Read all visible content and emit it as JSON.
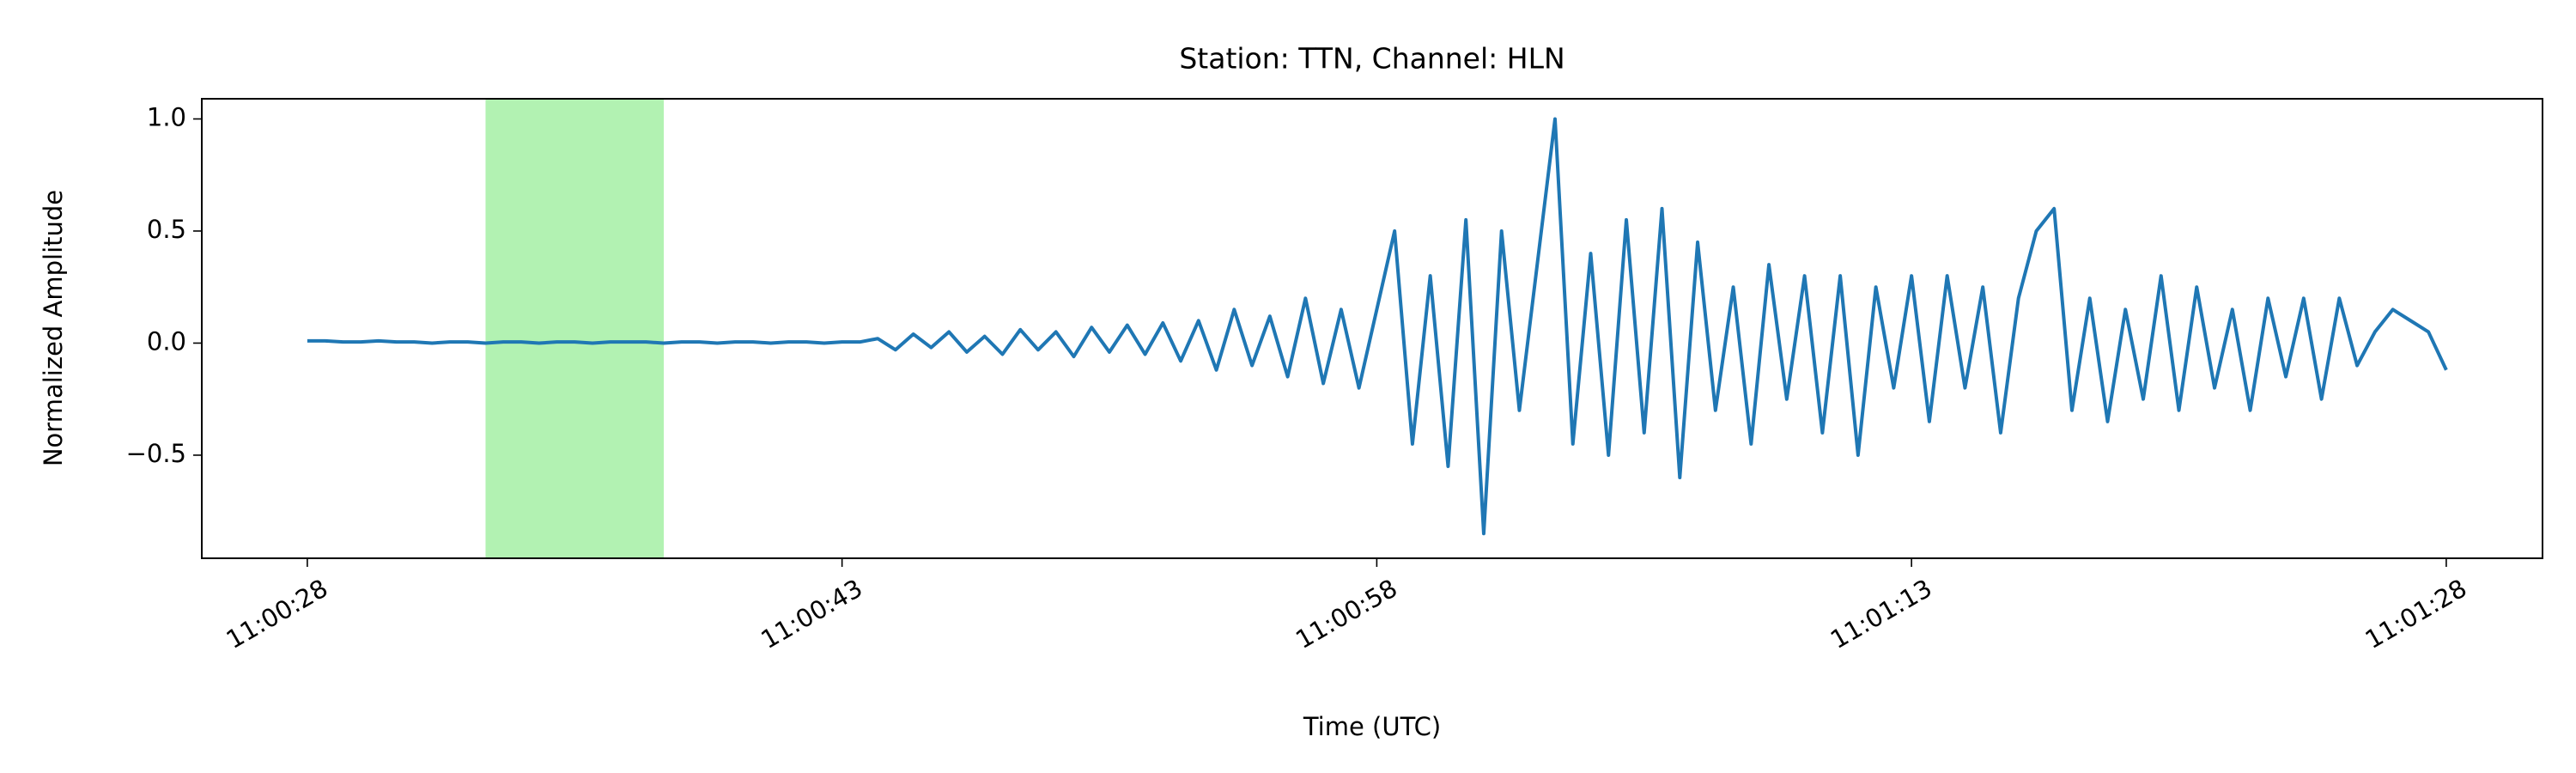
{
  "chart_data": {
    "type": "line",
    "title": "Station: TTN, Channel: HLN",
    "x_label": "Time (UTC)",
    "y_label": "Normalized Amplitude",
    "x": [
      39628,
      39628.5,
      39629,
      39629.5,
      39630,
      39630.5,
      39631,
      39631.5,
      39632,
      39632.5,
      39633,
      39633.5,
      39634,
      39634.5,
      39635,
      39635.5,
      39636,
      39636.5,
      39637,
      39637.5,
      39638,
      39638.5,
      39639,
      39639.5,
      39640,
      39640.5,
      39641,
      39641.5,
      39642,
      39642.5,
      39643,
      39643.5,
      39644,
      39644.5,
      39645,
      39645.5,
      39646,
      39646.5,
      39647,
      39647.5,
      39648,
      39648.5,
      39649,
      39649.5,
      39650,
      39650.5,
      39651,
      39651.5,
      39652,
      39652.5,
      39653,
      39653.5,
      39654,
      39654.5,
      39655,
      39655.5,
      39656,
      39656.5,
      39657,
      39657.5,
      39658,
      39658.5,
      39659,
      39659.5,
      39660,
      39660.5,
      39661,
      39661.5,
      39662,
      39662.5,
      39663,
      39663.5,
      39664,
      39664.5,
      39665,
      39665.5,
      39666,
      39666.5,
      39667,
      39667.5,
      39668,
      39668.5,
      39669,
      39669.5,
      39670,
      39670.5,
      39671,
      39671.5,
      39672,
      39672.5,
      39673,
      39673.5,
      39674,
      39674.5,
      39675,
      39675.5,
      39676,
      39676.5,
      39677,
      39677.5,
      39678,
      39678.5,
      39679,
      39679.5,
      39680,
      39680.5,
      39681,
      39681.5,
      39682,
      39682.5,
      39683,
      39683.5,
      39684,
      39684.5,
      39685,
      39685.5,
      39686,
      39686.5,
      39687,
      39687.5,
      39688
    ],
    "series": [
      {
        "color": "#1f77b4",
        "values": [
          0.01,
          0.01,
          0.005,
          0.005,
          0.01,
          0.005,
          0.005,
          0.0,
          0.005,
          0.005,
          0.0,
          0.005,
          0.005,
          0.0,
          0.005,
          0.005,
          0.0,
          0.005,
          0.005,
          0.005,
          0.0,
          0.005,
          0.005,
          0.0,
          0.005,
          0.005,
          0.0,
          0.005,
          0.005,
          0.0,
          0.005,
          0.005,
          0.02,
          -0.03,
          0.04,
          -0.02,
          0.05,
          -0.04,
          0.03,
          -0.05,
          0.06,
          -0.03,
          0.05,
          -0.06,
          0.07,
          -0.04,
          0.08,
          -0.05,
          0.09,
          -0.08,
          0.1,
          -0.12,
          0.15,
          -0.1,
          0.12,
          -0.15,
          0.2,
          -0.18,
          0.15,
          -0.2,
          0.15,
          0.5,
          -0.45,
          0.3,
          -0.55,
          0.55,
          -0.85,
          0.5,
          -0.3,
          0.35,
          1.0,
          -0.45,
          0.4,
          -0.5,
          0.55,
          -0.4,
          0.6,
          -0.6,
          0.45,
          -0.3,
          0.25,
          -0.45,
          0.35,
          -0.25,
          0.3,
          -0.4,
          0.3,
          -0.5,
          0.25,
          -0.2,
          0.3,
          -0.35,
          0.3,
          -0.2,
          0.25,
          -0.4,
          0.2,
          0.5,
          0.6,
          -0.3,
          0.2,
          -0.35,
          0.15,
          -0.25,
          0.3,
          -0.3,
          0.25,
          -0.2,
          0.15,
          -0.3,
          0.2,
          -0.15,
          0.2,
          -0.25,
          0.2,
          -0.1,
          0.05,
          0.15,
          0.1,
          0.05,
          -0.12
        ]
      }
    ],
    "highlight": {
      "xmin": 39633,
      "xmax": 39638,
      "color": "#b2f2b2"
    },
    "xlim": [
      39625.04,
      39690.7
    ],
    "ylim": [
      -0.96,
      1.09
    ],
    "xticks": [
      {
        "value": 39628,
        "label": "11:00:28"
      },
      {
        "value": 39643,
        "label": "11:00:43"
      },
      {
        "value": 39658,
        "label": "11:00:58"
      },
      {
        "value": 39673,
        "label": "11:01:13"
      },
      {
        "value": 39688,
        "label": "11:01:28"
      }
    ],
    "yticks": [
      {
        "value": -0.5,
        "label": "−0.5"
      },
      {
        "value": 0,
        "label": "0.0"
      },
      0.5,
      {
        "value": 1,
        "label": "1.0"
      }
    ]
  }
}
